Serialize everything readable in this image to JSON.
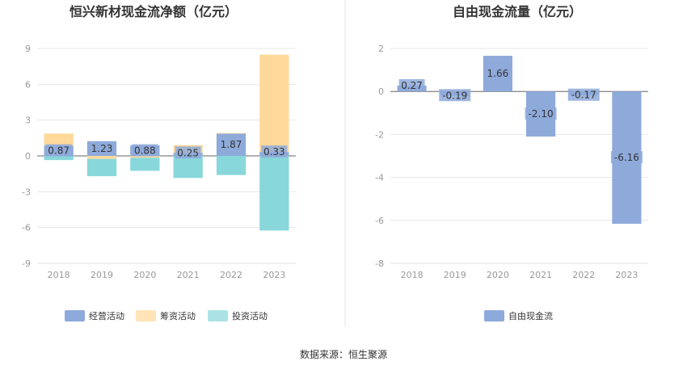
{
  "source": "数据来源：恒生聚源",
  "chart_data": [
    {
      "type": "bar",
      "stacked": true,
      "title": "恒兴新材现金流净额（亿元）",
      "categories": [
        "2018",
        "2019",
        "2020",
        "2021",
        "2022",
        "2023"
      ],
      "ylim": [
        -9,
        9
      ],
      "yticks": [
        "9",
        "6",
        "3",
        "0",
        "-3",
        "-6",
        "-9"
      ],
      "ytick_values": [
        9,
        6,
        3,
        0,
        -3,
        -6,
        -9
      ],
      "grid": true,
      "legend_position": "bottom",
      "label_series": 0,
      "series": [
        {
          "name": "经营活动",
          "color": "#8eaadb",
          "values": [
            0.87,
            1.23,
            0.88,
            0.25,
            1.87,
            0.33
          ],
          "labels": [
            "0.87",
            "1.23",
            "0.88",
            "0.25",
            "1.87",
            "0.33"
          ]
        },
        {
          "name": "筹资活动",
          "color": "#ffd99a",
          "values": [
            1.0,
            -0.25,
            -0.15,
            0.65,
            0.05,
            8.15
          ]
        },
        {
          "name": "投资活动",
          "color": "#88d7da",
          "values": [
            -0.35,
            -1.45,
            -1.1,
            -1.85,
            -1.6,
            -6.25
          ]
        }
      ]
    },
    {
      "type": "bar",
      "title": "自由现金流量（亿元）",
      "categories": [
        "2018",
        "2019",
        "2020",
        "2021",
        "2022",
        "2023"
      ],
      "ylim": [
        -8,
        2
      ],
      "yticks": [
        "2",
        "0",
        "-2",
        "-4",
        "-6",
        "-8"
      ],
      "ytick_values": [
        2,
        0,
        -2,
        -4,
        -6,
        -8
      ],
      "grid": true,
      "legend_position": "bottom",
      "series": [
        {
          "name": "自由现金流",
          "color": "#8eaadb",
          "values": [
            0.27,
            -0.19,
            1.66,
            -2.1,
            -0.17,
            -6.16
          ],
          "labels": [
            "0.27",
            "-0.19",
            "1.66",
            "-2.10",
            "-0.17",
            "-6.16"
          ]
        }
      ]
    }
  ]
}
